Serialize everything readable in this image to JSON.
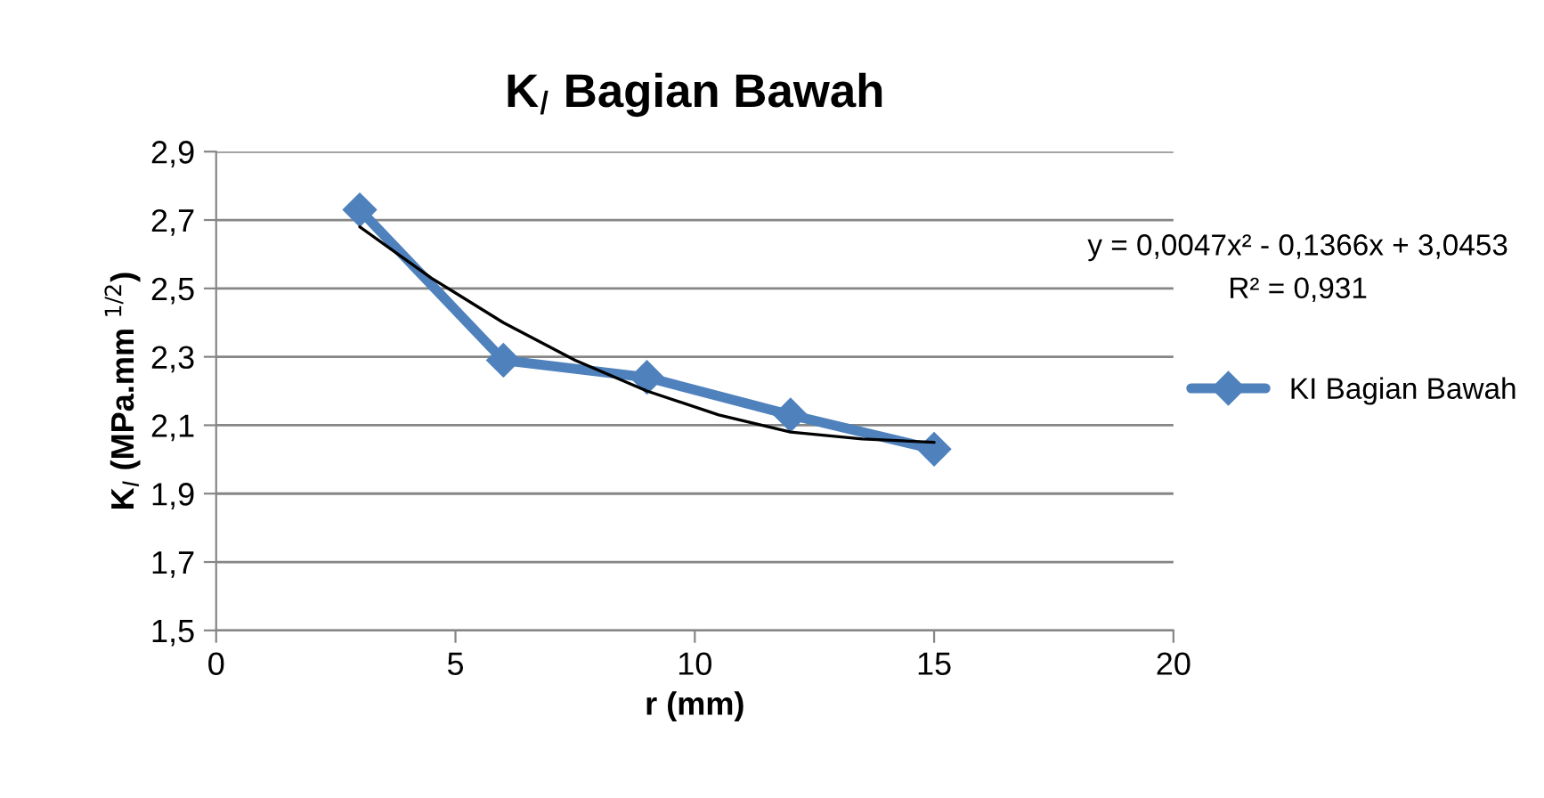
{
  "chart_data": {
    "type": "line",
    "title": "K$_{I}$ Bagian Bawah",
    "xlabel": "r (mm)",
    "ylabel": "K$_{I}$ (MPa.mm $^{1/2}$)",
    "x": [
      3,
      6,
      9,
      12,
      15
    ],
    "series": [
      {
        "name": "KI Bagian Bawah",
        "color": "#4f81bd",
        "values": [
          2.73,
          2.29,
          2.24,
          2.13,
          2.03
        ],
        "marker": "diamond"
      },
      {
        "type": "line",
        "color": "#000000",
        "marker": "none",
        "x": [
          3,
          4.5,
          6,
          7.5,
          9,
          10.5,
          12,
          13.5,
          15
        ],
        "values": [
          2.68,
          2.53,
          2.4,
          2.29,
          2.2,
          2.13,
          2.08,
          2.06,
          2.05
        ]
      }
    ],
    "annotations": [
      "y = 0,0047x² - 0,1366x + 3,0453",
      "R² = 0,931"
    ],
    "xlim": [
      0,
      20
    ],
    "xticks": [
      0,
      5,
      10,
      15,
      20
    ],
    "ylim": [
      1.5,
      2.9
    ],
    "yticks": [
      {
        "value": 1.5,
        "label": "1,5"
      },
      {
        "value": 1.7,
        "label": "1,7"
      },
      {
        "value": 1.9,
        "label": "1,9"
      },
      {
        "value": 2.1,
        "label": "2,1"
      },
      {
        "value": 2.3,
        "label": "2,3"
      },
      {
        "value": 2.5,
        "label": "2,5"
      },
      {
        "value": 2.7,
        "label": "2,7"
      },
      {
        "value": 2.9,
        "label": "2,9"
      }
    ],
    "grid": "y",
    "legend": "right",
    "line_style": "solid"
  }
}
